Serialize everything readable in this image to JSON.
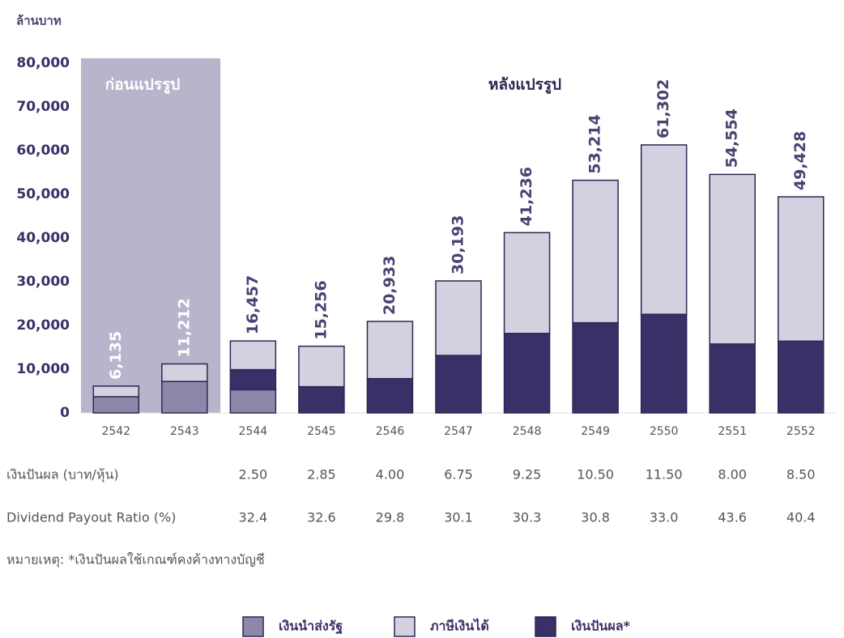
{
  "chart_data": {
    "type": "stacked_bar",
    "y_label": "ล้านบาท",
    "pre_label": "ก่อนแปรรูป",
    "post_label": "หลังแปรรูป",
    "categories": [
      "2542",
      "2543",
      "2544",
      "2545",
      "2546",
      "2547",
      "2548",
      "2549",
      "2550",
      "2551",
      "2552"
    ],
    "series": [
      {
        "name": "เงินนำส่งรัฐ",
        "color": "#8e87aa",
        "values": [
          3700,
          7200,
          5300,
          null,
          null,
          null,
          null,
          null,
          null,
          null,
          null
        ]
      },
      {
        "name": "เงินปันผล*",
        "color": "#3a3068",
        "values": [
          null,
          null,
          4600,
          6000,
          7850,
          13140,
          18190,
          20630,
          22560,
          15770,
          16420
        ]
      },
      {
        "name": "ภาษีเงินได้",
        "color": "#d3d1e0",
        "values": [
          2435,
          4012,
          6557,
          9256,
          13083,
          17053,
          23046,
          32584,
          38742,
          38784,
          33008
        ]
      }
    ],
    "legend_order": [
      0,
      2,
      1
    ],
    "totals": {
      "values": [
        6135,
        11212,
        16457,
        15256,
        20933,
        30193,
        41236,
        53214,
        61302,
        54554,
        49428
      ],
      "value_labels": [
        "6,135",
        "11,212",
        "16,457",
        "15,256",
        "20,933",
        "30,193",
        "41,236",
        "53,214",
        "61,302",
        "54,554",
        "49,428"
      ]
    },
    "pre_count": 2,
    "ylim": [
      0,
      80000
    ],
    "yticks": [
      0,
      {
        "value": 10000,
        "label": "10,000"
      },
      {
        "value": 20000,
        "label": "20,000"
      },
      {
        "value": 30000,
        "label": "30,000"
      },
      {
        "value": 40000,
        "label": "40,000"
      },
      {
        "value": 50000,
        "label": "50,000"
      },
      {
        "value": 60000,
        "label": "60,000"
      },
      {
        "value": 70000,
        "label": "70,000"
      },
      {
        "value": 80000,
        "label": "80,000"
      }
    ],
    "table": {
      "rows": [
        {
          "label": "เงินปันผล (บาท/หุ้น)",
          "values": [
            null,
            null,
            "2.50",
            "2.85",
            "4.00",
            "6.75",
            "9.25",
            "10.50",
            "11.50",
            "8.00",
            "8.50"
          ]
        },
        {
          "label": "Dividend Payout Ratio (%)",
          "values": [
            null,
            null,
            "32.4",
            "32.6",
            "29.8",
            "30.1",
            "30.3",
            "30.8",
            "33.0",
            "43.6",
            "40.4"
          ]
        }
      ]
    },
    "note": "หมายเหตุ: *เงินปันผลใช้เกณฑ์คงค้างทางบัญชี"
  }
}
